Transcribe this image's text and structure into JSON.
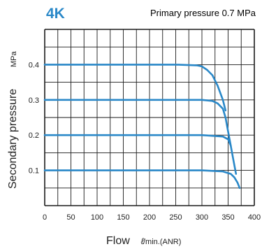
{
  "header": {
    "model": "4K",
    "condition": "Primary pressure 0.7 MPa"
  },
  "colors": {
    "accent": "#2a88c8",
    "grid": "#1a1a1a",
    "curve": "#2a88c8"
  },
  "chart_data": {
    "type": "line",
    "title": "",
    "xlabel": "Flow",
    "xlabel_unit_symbol": "ℓ",
    "xlabel_unit": "/min.(ANR)",
    "ylabel": "Secondary pressure",
    "ylabel_unit": "MPa",
    "xlim": [
      0,
      400
    ],
    "ylim": [
      0,
      0.5
    ],
    "xticks": [
      0,
      50,
      100,
      150,
      200,
      250,
      300,
      350,
      400
    ],
    "yticks": [
      0.1,
      0.2,
      0.3,
      0.4
    ],
    "ytick_labels": [
      "0.1",
      "0.2",
      "0.3",
      "0.4"
    ],
    "grid": true,
    "series": [
      {
        "x": [
          0,
          50,
          100,
          150,
          200,
          250,
          290,
          300,
          310,
          320,
          330,
          340,
          345
        ],
        "y": [
          0.4,
          0.4,
          0.4,
          0.4,
          0.4,
          0.4,
          0.398,
          0.395,
          0.385,
          0.37,
          0.34,
          0.3,
          0.27
        ]
      },
      {
        "x": [
          0,
          50,
          100,
          150,
          200,
          250,
          300,
          320,
          330,
          340,
          345,
          350,
          355
        ],
        "y": [
          0.3,
          0.3,
          0.3,
          0.3,
          0.3,
          0.3,
          0.3,
          0.297,
          0.29,
          0.275,
          0.25,
          0.21,
          0.17
        ]
      },
      {
        "x": [
          0,
          50,
          100,
          150,
          200,
          250,
          300,
          340,
          350,
          355,
          360,
          365
        ],
        "y": [
          0.2,
          0.2,
          0.2,
          0.2,
          0.2,
          0.2,
          0.2,
          0.196,
          0.188,
          0.17,
          0.13,
          0.09
        ]
      },
      {
        "x": [
          0,
          50,
          100,
          150,
          200,
          250,
          300,
          340,
          355,
          362,
          368,
          372
        ],
        "y": [
          0.1,
          0.1,
          0.1,
          0.1,
          0.1,
          0.1,
          0.1,
          0.097,
          0.09,
          0.08,
          0.065,
          0.05
        ]
      }
    ]
  }
}
